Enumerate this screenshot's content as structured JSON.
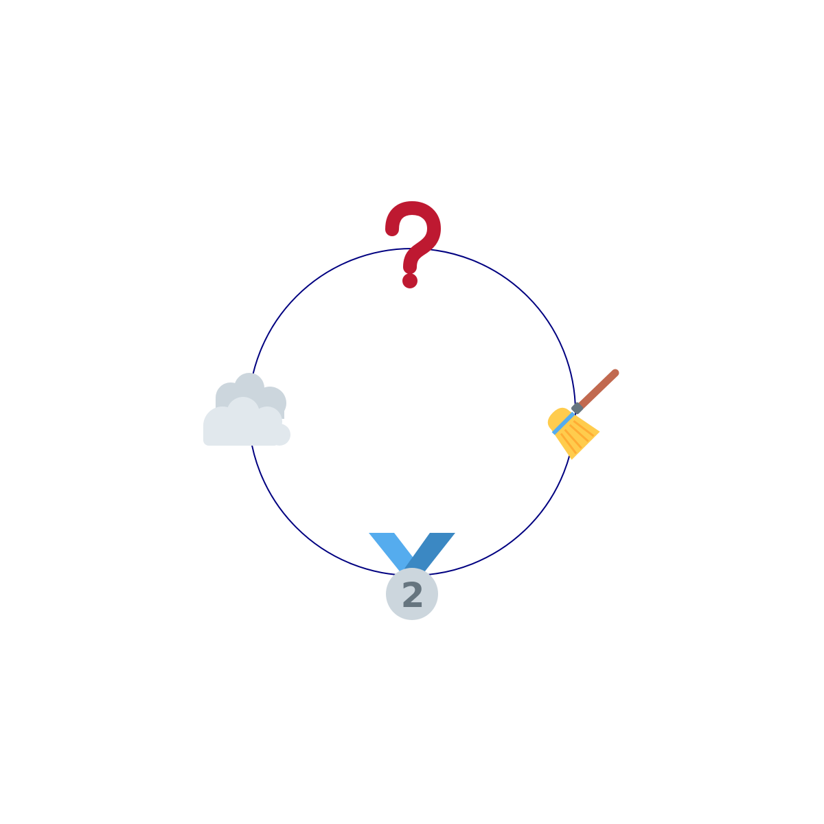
{
  "diagram": {
    "ring": {
      "color": "#000080"
    },
    "icons": [
      {
        "name": "question-mark-icon",
        "position": "top",
        "color": "#BE1931"
      },
      {
        "name": "broom-icon",
        "position": "right",
        "colors": [
          "#C1694F",
          "#66757F",
          "#FFCC4D",
          "#FFAC33",
          "#55ACEE"
        ]
      },
      {
        "name": "second-place-medal-icon",
        "position": "bottom",
        "colors": [
          "#55ACEE",
          "#3B88C3",
          "#CCD6DD",
          "#66757F"
        ],
        "label": "2"
      },
      {
        "name": "cloud-icon",
        "position": "left",
        "colors": [
          "#CCD6DD",
          "#E1E8ED"
        ]
      }
    ]
  }
}
